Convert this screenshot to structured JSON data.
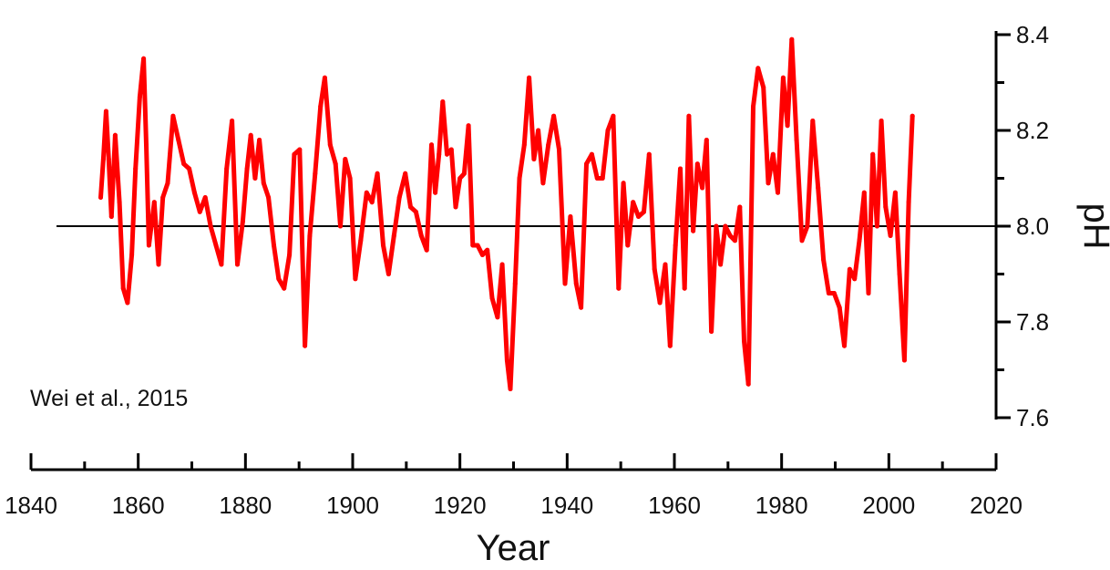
{
  "chart_data": {
    "type": "line",
    "title": "",
    "xlabel": "Year",
    "ylabel": "pH",
    "annotation": "Wei et al., 2015",
    "xlim": [
      1840,
      2020
    ],
    "ylim": [
      7.6,
      8.4
    ],
    "x_ticks": [
      1840,
      1860,
      1880,
      1900,
      1920,
      1940,
      1960,
      1980,
      2000,
      2020
    ],
    "x_tick_labels": [
      "1840",
      "1860",
      "1880",
      "1900",
      "1920",
      "1940",
      "1960",
      "1980",
      "2000",
      "2020"
    ],
    "y_ticks": [
      7.6,
      7.8,
      8.0,
      8.2,
      8.4
    ],
    "y_tick_labels": [
      "7.6",
      "7.8",
      "8.0",
      "8.2",
      "8.4"
    ],
    "y_axis_position": "right",
    "reference_line": 8.0,
    "grid": false,
    "legend": "none",
    "colors": {
      "series": "#ff0000",
      "axis": "#000000",
      "reference": "#000000",
      "text": "#111111"
    },
    "series": [
      {
        "values": [
          [
            1853,
            8.06
          ],
          [
            1853.5,
            8.14
          ],
          [
            1854,
            8.24
          ],
          [
            1854.5,
            8.14
          ],
          [
            1855,
            8.02
          ],
          [
            1855.7,
            8.19
          ],
          [
            1856.5,
            8.05
          ],
          [
            1857.2,
            7.87
          ],
          [
            1858,
            7.84
          ],
          [
            1858.8,
            7.94
          ],
          [
            1859.5,
            8.12
          ],
          [
            1860.3,
            8.27
          ],
          [
            1861,
            8.35
          ],
          [
            1861.5,
            8.17
          ],
          [
            1862,
            7.96
          ],
          [
            1863,
            8.05
          ],
          [
            1863.8,
            7.92
          ],
          [
            1864.6,
            8.06
          ],
          [
            1865.5,
            8.09
          ],
          [
            1866.5,
            8.23
          ],
          [
            1867.5,
            8.18
          ],
          [
            1868.5,
            8.13
          ],
          [
            1869.5,
            8.12
          ],
          [
            1870.5,
            8.07
          ],
          [
            1871.5,
            8.03
          ],
          [
            1872.5,
            8.06
          ],
          [
            1873.5,
            8.0
          ],
          [
            1874.5,
            7.96
          ],
          [
            1875.5,
            7.92
          ],
          [
            1876.5,
            8.12
          ],
          [
            1877.5,
            8.22
          ],
          [
            1878.5,
            7.92
          ],
          [
            1879.5,
            8.01
          ],
          [
            1880.3,
            8.12
          ],
          [
            1881,
            8.19
          ],
          [
            1881.8,
            8.1
          ],
          [
            1882.6,
            8.18
          ],
          [
            1883.4,
            8.09
          ],
          [
            1884.3,
            8.06
          ],
          [
            1885.3,
            7.96
          ],
          [
            1886.2,
            7.89
          ],
          [
            1887.2,
            7.87
          ],
          [
            1888.2,
            7.94
          ],
          [
            1889.1,
            8.15
          ],
          [
            1890.1,
            8.16
          ],
          [
            1891.1,
            7.75
          ],
          [
            1892,
            7.98
          ],
          [
            1893,
            8.11
          ],
          [
            1894,
            8.25
          ],
          [
            1894.8,
            8.31
          ],
          [
            1895.8,
            8.17
          ],
          [
            1896.8,
            8.13
          ],
          [
            1897.7,
            8.0
          ],
          [
            1898.6,
            8.14
          ],
          [
            1899.5,
            8.1
          ],
          [
            1900.5,
            7.89
          ],
          [
            1901.5,
            7.97
          ],
          [
            1902.6,
            8.07
          ],
          [
            1903.6,
            8.05
          ],
          [
            1904.6,
            8.11
          ],
          [
            1905.7,
            7.96
          ],
          [
            1906.7,
            7.9
          ],
          [
            1907.7,
            7.98
          ],
          [
            1908.7,
            8.06
          ],
          [
            1909.8,
            8.11
          ],
          [
            1910.8,
            8.04
          ],
          [
            1911.8,
            8.03
          ],
          [
            1912.8,
            7.98
          ],
          [
            1913.8,
            7.95
          ],
          [
            1914.7,
            8.17
          ],
          [
            1915.4,
            8.07
          ],
          [
            1916.1,
            8.15
          ],
          [
            1916.8,
            8.26
          ],
          [
            1917.6,
            8.15
          ],
          [
            1918.4,
            8.16
          ],
          [
            1919.2,
            8.04
          ],
          [
            1920,
            8.1
          ],
          [
            1920.8,
            8.11
          ],
          [
            1921.6,
            8.21
          ],
          [
            1922.4,
            7.96
          ],
          [
            1923.3,
            7.96
          ],
          [
            1924.2,
            7.94
          ],
          [
            1925.1,
            7.95
          ],
          [
            1926,
            7.85
          ],
          [
            1927,
            7.81
          ],
          [
            1927.9,
            7.92
          ],
          [
            1928.8,
            7.72
          ],
          [
            1929.4,
            7.66
          ],
          [
            1930.3,
            7.88
          ],
          [
            1931.1,
            8.1
          ],
          [
            1932,
            8.17
          ],
          [
            1932.9,
            8.31
          ],
          [
            1933.8,
            8.14
          ],
          [
            1934.6,
            8.2
          ],
          [
            1935.5,
            8.09
          ],
          [
            1936.5,
            8.17
          ],
          [
            1937.5,
            8.23
          ],
          [
            1938.5,
            8.16
          ],
          [
            1939.6,
            7.88
          ],
          [
            1940.6,
            8.02
          ],
          [
            1941.7,
            7.88
          ],
          [
            1942.6,
            7.83
          ],
          [
            1943.6,
            8.13
          ],
          [
            1944.6,
            8.15
          ],
          [
            1945.6,
            8.1
          ],
          [
            1946.6,
            8.1
          ],
          [
            1947.6,
            8.2
          ],
          [
            1948.6,
            8.23
          ],
          [
            1949.6,
            7.87
          ],
          [
            1950.5,
            8.09
          ],
          [
            1951.3,
            7.96
          ],
          [
            1952.3,
            8.05
          ],
          [
            1953.3,
            8.02
          ],
          [
            1954.3,
            8.03
          ],
          [
            1955.3,
            8.15
          ],
          [
            1956.3,
            7.91
          ],
          [
            1957.3,
            7.84
          ],
          [
            1958.3,
            7.92
          ],
          [
            1959.2,
            7.75
          ],
          [
            1960.2,
            7.96
          ],
          [
            1961.1,
            8.12
          ],
          [
            1961.9,
            7.87
          ],
          [
            1962.7,
            8.23
          ],
          [
            1963.5,
            7.99
          ],
          [
            1964.3,
            8.13
          ],
          [
            1965.2,
            8.08
          ],
          [
            1966,
            8.18
          ],
          [
            1966.9,
            7.78
          ],
          [
            1967.8,
            8.0
          ],
          [
            1968.6,
            7.92
          ],
          [
            1969.5,
            8.0
          ],
          [
            1970.4,
            7.98
          ],
          [
            1971.3,
            7.97
          ],
          [
            1972.2,
            8.04
          ],
          [
            1973,
            7.76
          ],
          [
            1973.8,
            7.67
          ],
          [
            1974.7,
            8.25
          ],
          [
            1975.6,
            8.33
          ],
          [
            1976.6,
            8.29
          ],
          [
            1977.5,
            8.09
          ],
          [
            1978.4,
            8.15
          ],
          [
            1979.3,
            8.07
          ],
          [
            1980.3,
            8.31
          ],
          [
            1981.1,
            8.21
          ],
          [
            1981.9,
            8.39
          ],
          [
            1982.8,
            8.18
          ],
          [
            1983.8,
            7.97
          ],
          [
            1984.8,
            8.0
          ],
          [
            1985.8,
            8.22
          ],
          [
            1986.8,
            8.08
          ],
          [
            1987.8,
            7.93
          ],
          [
            1988.8,
            7.86
          ],
          [
            1989.8,
            7.86
          ],
          [
            1990.8,
            7.83
          ],
          [
            1991.7,
            7.75
          ],
          [
            1992.7,
            7.91
          ],
          [
            1993.6,
            7.89
          ],
          [
            1994.5,
            7.97
          ],
          [
            1995.4,
            8.07
          ],
          [
            1996.2,
            7.86
          ],
          [
            1997,
            8.15
          ],
          [
            1997.8,
            8.0
          ],
          [
            1998.6,
            8.22
          ],
          [
            1999.4,
            8.04
          ],
          [
            2000.3,
            7.98
          ],
          [
            2001.2,
            8.07
          ],
          [
            2002,
            7.9
          ],
          [
            2002.9,
            7.72
          ],
          [
            2003.7,
            8.05
          ],
          [
            2004.4,
            8.23
          ]
        ]
      }
    ]
  }
}
